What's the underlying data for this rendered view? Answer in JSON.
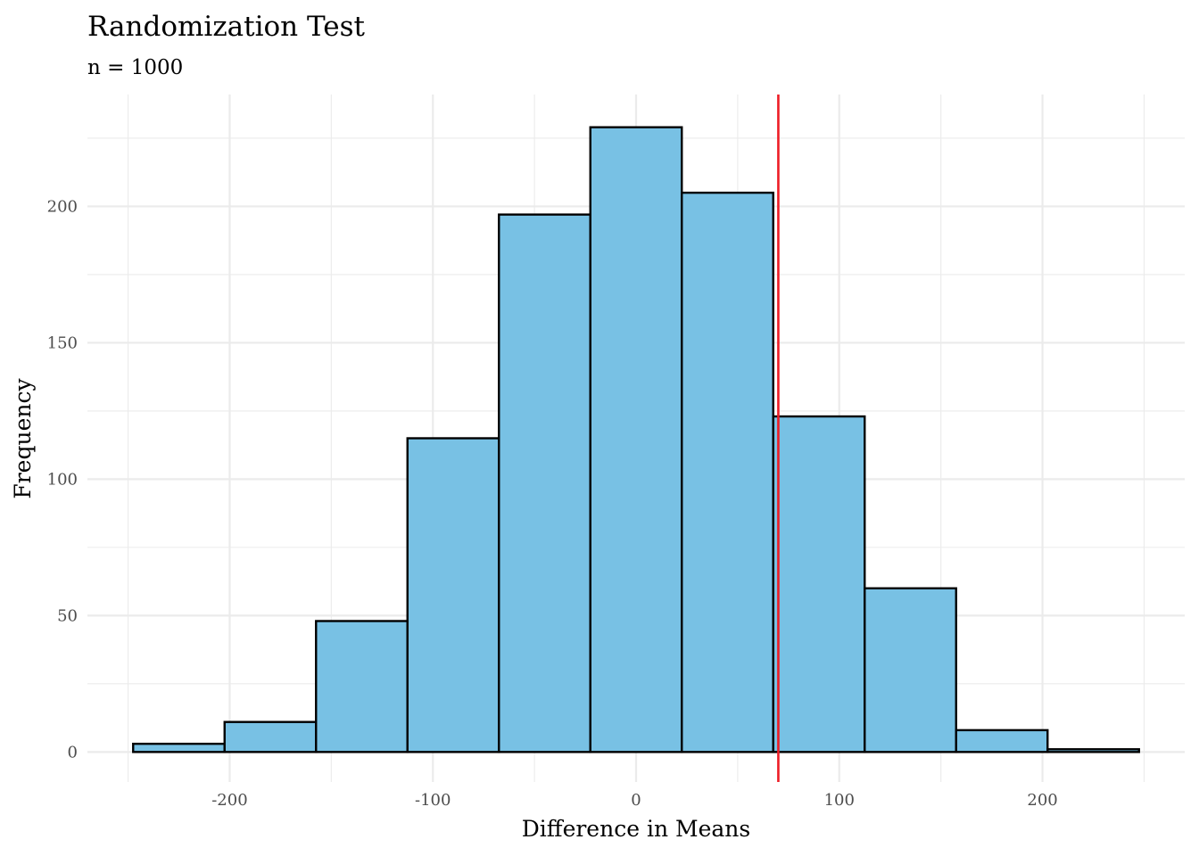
{
  "chart_data": {
    "type": "bar",
    "subtype": "histogram",
    "title": "Randomization Test",
    "subtitle": "n = 1000",
    "xlabel": "Difference in Means",
    "ylabel": "Frequency",
    "bin_width": 45,
    "bins": [
      {
        "x_start": -247.5,
        "x_end": -202.5,
        "count": 3
      },
      {
        "x_start": -202.5,
        "x_end": -157.5,
        "count": 11
      },
      {
        "x_start": -157.5,
        "x_end": -112.5,
        "count": 48
      },
      {
        "x_start": -112.5,
        "x_end": -67.5,
        "count": 115
      },
      {
        "x_start": -67.5,
        "x_end": -22.5,
        "count": 197
      },
      {
        "x_start": -22.5,
        "x_end": 22.5,
        "count": 229
      },
      {
        "x_start": 22.5,
        "x_end": 67.5,
        "count": 205
      },
      {
        "x_start": 67.5,
        "x_end": 112.5,
        "count": 123
      },
      {
        "x_start": 112.5,
        "x_end": 157.5,
        "count": 60
      },
      {
        "x_start": 157.5,
        "x_end": 202.5,
        "count": 8
      },
      {
        "x_start": 202.5,
        "x_end": 247.5,
        "count": 1
      }
    ],
    "reference_line": {
      "x": 70,
      "color": "#ee1c25"
    },
    "xlim": [
      -270,
      270
    ],
    "ylim": [
      -11,
      241
    ],
    "x_ticks": [
      -200,
      -100,
      0,
      100,
      200
    ],
    "x_tick_labels": [
      "-200",
      "-100",
      "0",
      "100",
      "200"
    ],
    "x_minor_ticks": [
      -250,
      -150,
      -50,
      50,
      150,
      250
    ],
    "y_ticks": [
      0,
      50,
      100,
      150,
      200
    ],
    "y_tick_labels": [
      "0",
      "50",
      "100",
      "150",
      "200"
    ],
    "y_minor_ticks": [
      25,
      75,
      125,
      175,
      225
    ],
    "bar_fill": "#78c1e4",
    "bar_outline": "#000000",
    "grid": true,
    "legend": "none"
  }
}
